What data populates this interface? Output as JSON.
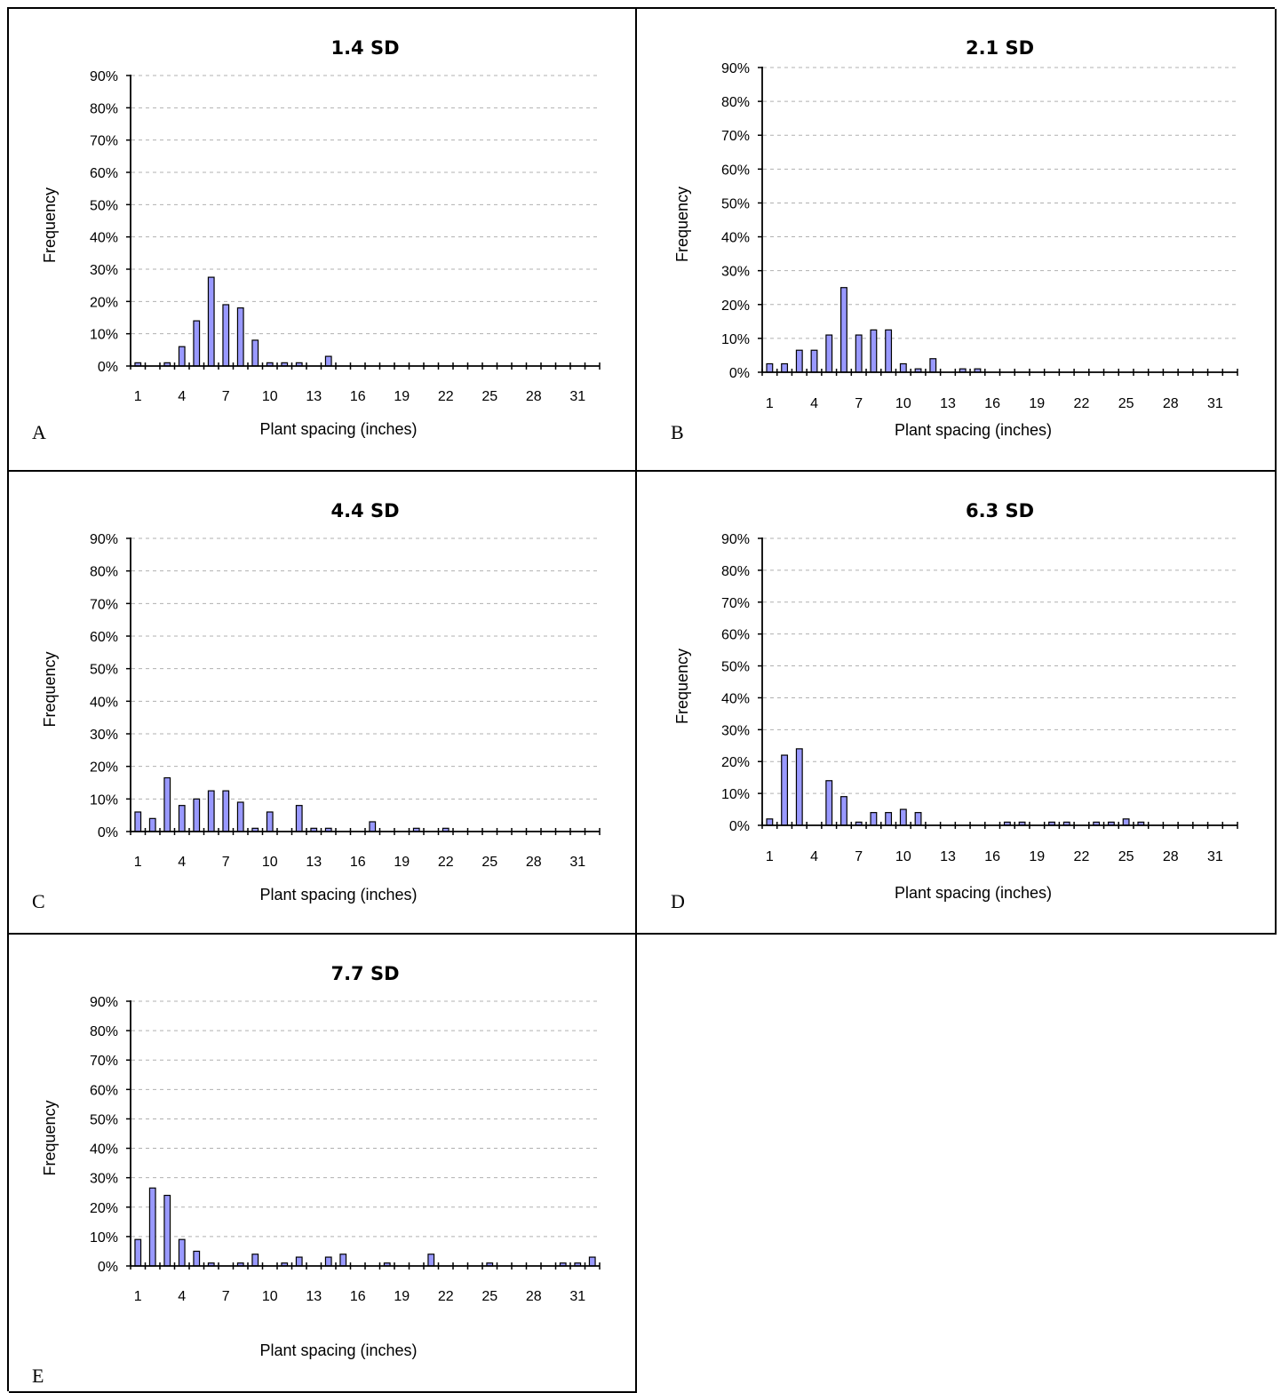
{
  "panels": [
    {
      "letter": "A"
    },
    {
      "letter": "B"
    },
    {
      "letter": "C"
    },
    {
      "letter": "D"
    },
    {
      "letter": "E"
    }
  ],
  "chart_data": [
    {
      "type": "bar",
      "title": "1.4 SD",
      "xlabel": "Plant spacing (inches)",
      "ylabel": "Frequency",
      "ylim": [
        0,
        0.9
      ],
      "yticks": [
        "0%",
        "10%",
        "20%",
        "30%",
        "40%",
        "50%",
        "60%",
        "70%",
        "80%",
        "90%"
      ],
      "xticks": [
        "1",
        "4",
        "7",
        "10",
        "13",
        "16",
        "19",
        "22",
        "25",
        "28",
        "31"
      ],
      "categories": [
        1,
        2,
        3,
        4,
        5,
        6,
        7,
        8,
        9,
        10,
        11,
        12,
        13,
        14,
        15,
        16,
        17,
        18,
        19,
        20,
        21,
        22,
        23,
        24,
        25,
        26,
        27,
        28,
        29,
        30,
        31,
        32
      ],
      "values": [
        0.01,
        0,
        0.01,
        0.06,
        0.14,
        0.275,
        0.19,
        0.18,
        0.08,
        0.01,
        0.01,
        0.01,
        0,
        0.03,
        0,
        0,
        0,
        0,
        0,
        0,
        0,
        0,
        0,
        0,
        0,
        0,
        0,
        0,
        0,
        0,
        0,
        0
      ],
      "grid": true,
      "bar_color": "#9999ff"
    },
    {
      "type": "bar",
      "title": "2.1 SD",
      "xlabel": "Plant spacing (inches)",
      "ylabel": "Frequency",
      "ylim": [
        0,
        0.9
      ],
      "yticks": [
        "0%",
        "10%",
        "20%",
        "30%",
        "40%",
        "50%",
        "60%",
        "70%",
        "80%",
        "90%"
      ],
      "xticks": [
        "1",
        "4",
        "7",
        "10",
        "13",
        "16",
        "19",
        "22",
        "25",
        "28",
        "31"
      ],
      "categories": [
        1,
        2,
        3,
        4,
        5,
        6,
        7,
        8,
        9,
        10,
        11,
        12,
        13,
        14,
        15,
        16,
        17,
        18,
        19,
        20,
        21,
        22,
        23,
        24,
        25,
        26,
        27,
        28,
        29,
        30,
        31,
        32
      ],
      "values": [
        0.025,
        0.025,
        0.065,
        0.065,
        0.11,
        0.25,
        0.11,
        0.125,
        0.125,
        0.025,
        0.01,
        0.04,
        0,
        0.01,
        0.01,
        0,
        0,
        0,
        0,
        0,
        0,
        0,
        0,
        0,
        0,
        0,
        0,
        0,
        0,
        0,
        0,
        0
      ],
      "grid": true,
      "bar_color": "#9999ff"
    },
    {
      "type": "bar",
      "title": "4.4 SD",
      "xlabel": "Plant spacing (inches)",
      "ylabel": "Frequency",
      "ylim": [
        0,
        0.9
      ],
      "yticks": [
        "0%",
        "10%",
        "20%",
        "30%",
        "40%",
        "50%",
        "60%",
        "70%",
        "80%",
        "90%"
      ],
      "xticks": [
        "1",
        "4",
        "7",
        "10",
        "13",
        "16",
        "19",
        "22",
        "25",
        "28",
        "31"
      ],
      "categories": [
        1,
        2,
        3,
        4,
        5,
        6,
        7,
        8,
        9,
        10,
        11,
        12,
        13,
        14,
        15,
        16,
        17,
        18,
        19,
        20,
        21,
        22,
        23,
        24,
        25,
        26,
        27,
        28,
        29,
        30,
        31,
        32
      ],
      "values": [
        0.06,
        0.04,
        0.165,
        0.08,
        0.1,
        0.125,
        0.125,
        0.09,
        0.01,
        0.06,
        0,
        0.08,
        0.01,
        0.01,
        0,
        0,
        0.03,
        0,
        0,
        0.01,
        0,
        0.01,
        0,
        0,
        0,
        0,
        0,
        0,
        0,
        0,
        0,
        0
      ],
      "grid": true,
      "bar_color": "#9999ff"
    },
    {
      "type": "bar",
      "title": "6.3 SD",
      "xlabel": "Plant spacing (inches)",
      "ylabel": "Frequency",
      "ylim": [
        0,
        0.9
      ],
      "yticks": [
        "0%",
        "10%",
        "20%",
        "30%",
        "40%",
        "50%",
        "60%",
        "70%",
        "80%",
        "90%"
      ],
      "xticks": [
        "1",
        "4",
        "7",
        "10",
        "13",
        "16",
        "19",
        "22",
        "25",
        "28",
        "31"
      ],
      "categories": [
        1,
        2,
        3,
        4,
        5,
        6,
        7,
        8,
        9,
        10,
        11,
        12,
        13,
        14,
        15,
        16,
        17,
        18,
        19,
        20,
        21,
        22,
        23,
        24,
        25,
        26,
        27,
        28,
        29,
        30,
        31,
        32
      ],
      "values": [
        0.02,
        0.22,
        0.24,
        0,
        0.14,
        0.09,
        0.01,
        0.04,
        0.04,
        0.05,
        0.04,
        0,
        0,
        0,
        0,
        0,
        0.01,
        0.01,
        0,
        0.01,
        0.01,
        0,
        0.01,
        0.01,
        0.02,
        0.01,
        0,
        0,
        0,
        0,
        0,
        0
      ],
      "grid": true,
      "bar_color": "#9999ff"
    },
    {
      "type": "bar",
      "title": "7.7 SD",
      "xlabel": "Plant spacing (inches)",
      "ylabel": "Frequency",
      "ylim": [
        0,
        0.9
      ],
      "yticks": [
        "0%",
        "10%",
        "20%",
        "30%",
        "40%",
        "50%",
        "60%",
        "70%",
        "80%",
        "90%"
      ],
      "xticks": [
        "1",
        "4",
        "7",
        "10",
        "13",
        "16",
        "19",
        "22",
        "25",
        "28",
        "31"
      ],
      "categories": [
        1,
        2,
        3,
        4,
        5,
        6,
        7,
        8,
        9,
        10,
        11,
        12,
        13,
        14,
        15,
        16,
        17,
        18,
        19,
        20,
        21,
        22,
        23,
        24,
        25,
        26,
        27,
        28,
        29,
        30,
        31,
        32
      ],
      "values": [
        0.09,
        0.265,
        0.24,
        0.09,
        0.05,
        0.01,
        0,
        0.01,
        0.04,
        0,
        0.01,
        0.03,
        0,
        0.03,
        0.04,
        0,
        0,
        0.01,
        0,
        0,
        0.04,
        0,
        0,
        0,
        0.01,
        0,
        0,
        0,
        0,
        0.01,
        0.01,
        0.03
      ],
      "grid": true,
      "bar_color": "#9999ff"
    }
  ]
}
